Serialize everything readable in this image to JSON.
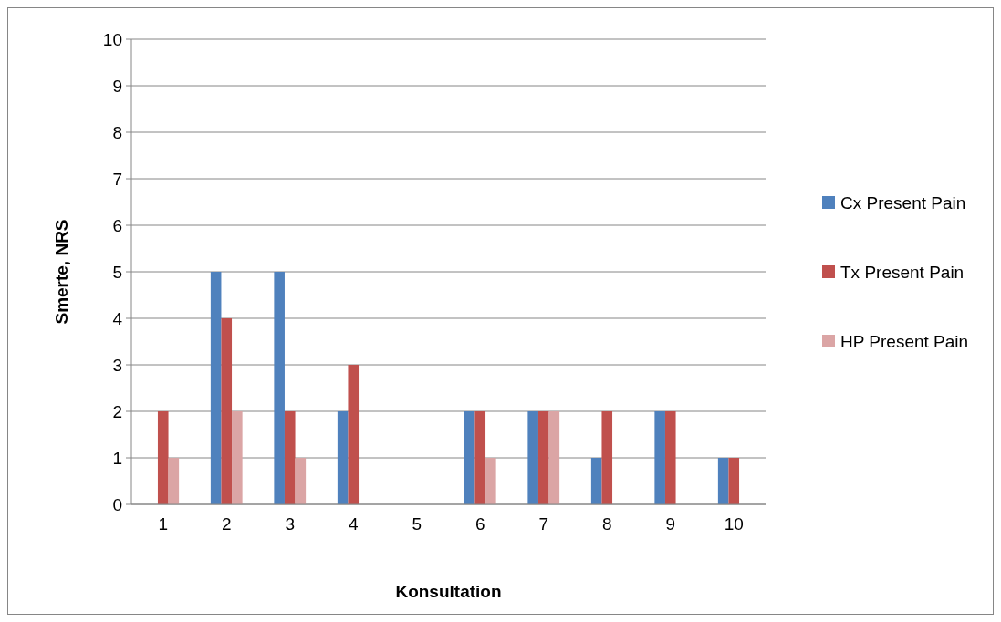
{
  "chart_data": {
    "type": "bar",
    "xlabel": "Konsultation",
    "ylabel": "Smerte, NRS",
    "categories": [
      "1",
      "2",
      "3",
      "4",
      "5",
      "6",
      "7",
      "8",
      "9",
      "10"
    ],
    "series": [
      {
        "name": "Cx Present Pain",
        "color": "#4f81bd",
        "values": [
          0,
          5,
          5,
          2,
          0,
          2,
          2,
          1,
          2,
          1
        ]
      },
      {
        "name": "Tx Present Pain",
        "color": "#c0504d",
        "values": [
          2,
          4,
          2,
          3,
          0,
          2,
          2,
          2,
          2,
          1
        ]
      },
      {
        "name": "HP Present Pain",
        "color": "#dba5a5",
        "values": [
          1,
          2,
          1,
          0,
          0,
          1,
          2,
          0,
          0,
          0
        ]
      }
    ],
    "ylim": [
      0,
      10
    ],
    "yticks": [
      0,
      1,
      2,
      3,
      4,
      5,
      6,
      7,
      8,
      9,
      10
    ],
    "grid": "y",
    "legend": "right"
  }
}
